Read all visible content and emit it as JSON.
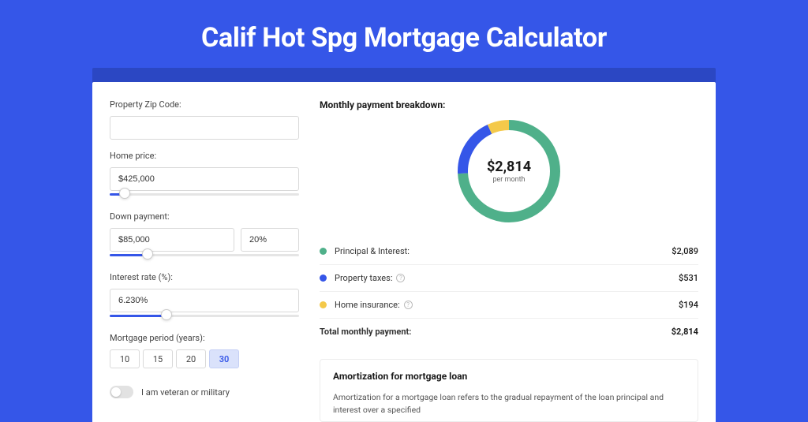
{
  "page_title": "Calif Hot Spg Mortgage Calculator",
  "colors": {
    "page_bg": "#3556e8",
    "card_outer_bg": "#2b47c3",
    "accent": "#3556e8"
  },
  "form": {
    "zip_label": "Property Zip Code:",
    "zip_value": "",
    "home_price_label": "Home price:",
    "home_price_value": "$425,000",
    "home_price_slider_pct": 8,
    "down_payment_label": "Down payment:",
    "down_payment_value": "$85,000",
    "down_payment_pct": "20%",
    "down_payment_slider_pct": 20,
    "interest_label": "Interest rate (%):",
    "interest_value": "6.230%",
    "interest_slider_pct": 30,
    "period_label": "Mortgage period (years):",
    "periods": [
      "10",
      "15",
      "20",
      "30"
    ],
    "period_selected": "30",
    "toggle_label": "I am veteran or military",
    "toggle_on": false
  },
  "breakdown": {
    "heading": "Monthly payment breakdown:",
    "donut": {
      "amount": "$2,814",
      "sub": "per month",
      "segments": [
        {
          "name": "principal_interest",
          "pct": 74.2,
          "color": "#4fb08a"
        },
        {
          "name": "property_taxes",
          "pct": 18.9,
          "color": "#3556e8"
        },
        {
          "name": "home_insurance",
          "pct": 6.9,
          "color": "#f4c94a"
        }
      ],
      "circumference": 282.74
    },
    "rows": [
      {
        "label": "Principal & Interest:",
        "value": "$2,089",
        "color": "#4fb08a",
        "info": false
      },
      {
        "label": "Property taxes:",
        "value": "$531",
        "color": "#3556e8",
        "info": true
      },
      {
        "label": "Home insurance:",
        "value": "$194",
        "color": "#f4c94a",
        "info": true
      }
    ],
    "total_label": "Total monthly payment:",
    "total_value": "$2,814"
  },
  "amort": {
    "heading": "Amortization for mortgage loan",
    "body": "Amortization for a mortgage loan refers to the gradual repayment of the loan principal and interest over a specified"
  }
}
